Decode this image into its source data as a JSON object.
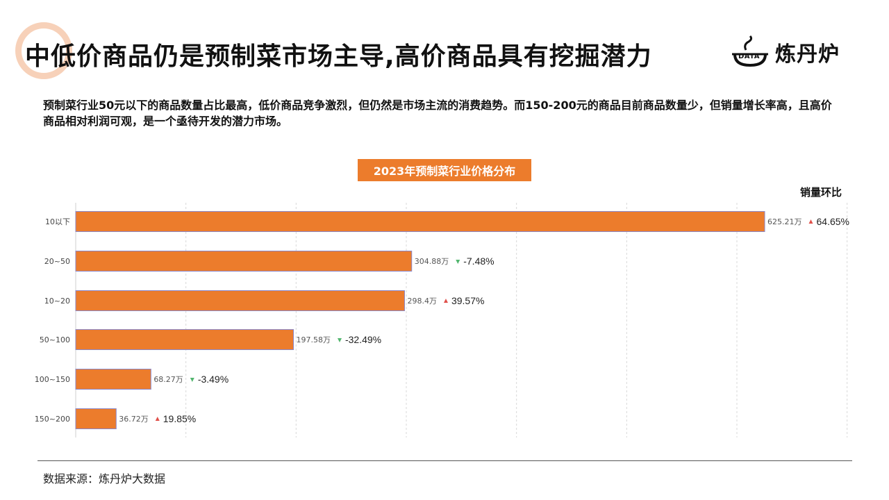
{
  "header": {
    "title": "中低价商品仍是预制菜市场主导,高价商品具有挖掘潜力",
    "logo_mark_text": "DATA",
    "logo_name": "炼丹炉"
  },
  "description": "预制菜行业50元以下的商品数量占比最高，低价商品竞争激烈，但仍然是市场主流的消费趋势。而150-200元的商品目前商品数量少，但销量增长率高，且高价商品相对利润可观，是一个亟待开发的潜力市场。",
  "chart_data": {
    "type": "bar",
    "orientation": "horizontal",
    "title": "2023年预制菜行业价格分布",
    "change_header": "销量环比",
    "categories": [
      "10以下",
      "20~50",
      "10~20",
      "50~100",
      "100~150",
      "150~200"
    ],
    "values": [
      625.21,
      304.88,
      298.4,
      197.58,
      68.27,
      36.72
    ],
    "value_labels": [
      "625.21万",
      "304.88万",
      "298.4万",
      "197.58万",
      "68.27万",
      "36.72万"
    ],
    "changes": [
      64.65,
      -7.48,
      39.57,
      -32.49,
      -3.49,
      19.85
    ],
    "change_labels": [
      "64.65%",
      "-7.48%",
      "39.57%",
      "-32.49%",
      "-3.49%",
      "19.85%"
    ],
    "xlim": [
      0,
      700
    ],
    "grid": true,
    "colors": {
      "bar": "#ec7c2c",
      "bar_edge": "#8a86c8",
      "up": "#e0504a",
      "down": "#52b66e",
      "grid": "#d9d9d9"
    }
  },
  "footer": {
    "source": "数据来源：炼丹炉大数据"
  }
}
